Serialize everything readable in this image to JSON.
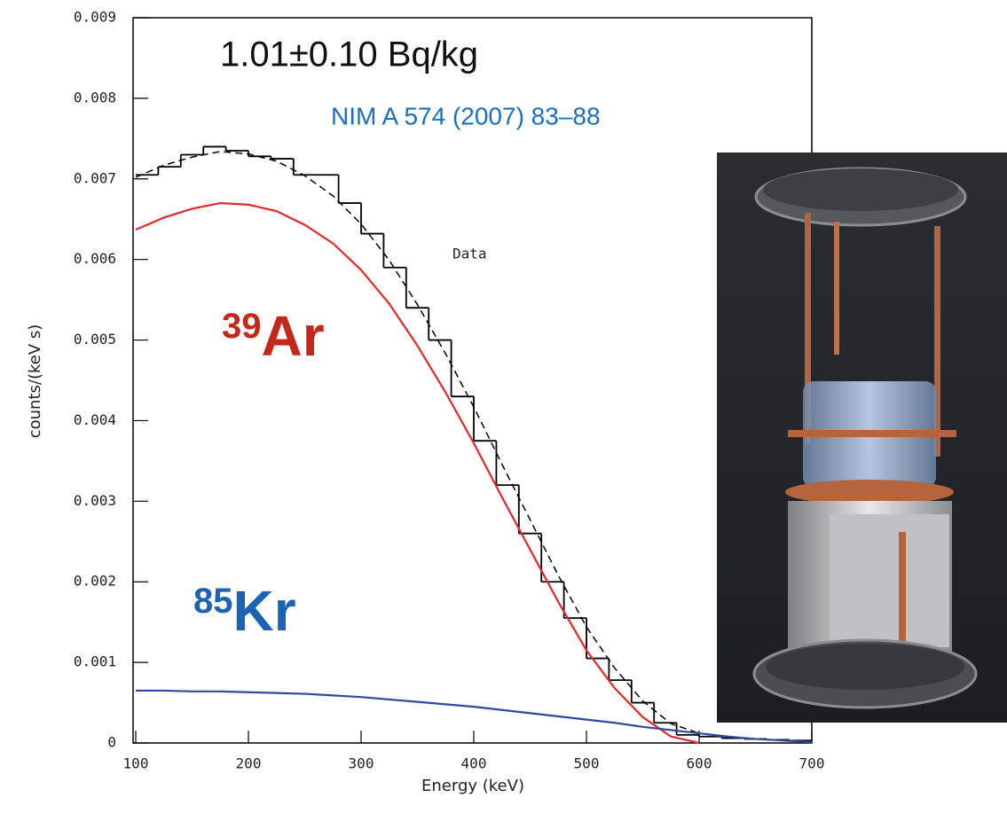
{
  "chart_data": {
    "type": "line",
    "y_label": "counts/(keV s)",
    "x_label": "Energy (keV)",
    "annotations": {
      "activity": "1.01±0.10 Bq/kg",
      "reference": "NIM A 574 (2007) 83–88",
      "data": "Data"
    },
    "isotope_labels": [
      {
        "mass": "39",
        "element": "Ar",
        "color": "#c4281b"
      },
      {
        "mass": "85",
        "element": "Kr",
        "color": "#1a63b5"
      }
    ],
    "xlim": [
      100,
      700
    ],
    "ylim": [
      0,
      0.009
    ],
    "xticks": [
      100,
      200,
      300,
      400,
      500,
      600,
      700
    ],
    "yticks": [
      0,
      0.001,
      0.002,
      0.003,
      0.004,
      0.005,
      0.006,
      0.007,
      0.008,
      0.009
    ],
    "histogram": {
      "color": "#000000",
      "bins": [
        100,
        120,
        140,
        160,
        180,
        200,
        220,
        240,
        260,
        280,
        300,
        320,
        340,
        360,
        380,
        400,
        420,
        440,
        460,
        480,
        500,
        520,
        540,
        560,
        580,
        600,
        620,
        640,
        660,
        680,
        700
      ],
      "counts": [
        0.00705,
        0.00715,
        0.0073,
        0.0074,
        0.00735,
        0.00728,
        0.00725,
        0.00705,
        0.00705,
        0.0067,
        0.00632,
        0.0059,
        0.0054,
        0.005,
        0.0043,
        0.00375,
        0.0032,
        0.0026,
        0.002,
        0.00155,
        0.00105,
        0.00078,
        0.0005,
        0.00025,
        0.0001,
        8e-05,
        6e-05,
        5e-05,
        4e-05,
        3e-05
      ]
    },
    "x": [
      100,
      125,
      150,
      175,
      200,
      225,
      250,
      275,
      300,
      325,
      350,
      375,
      400,
      425,
      450,
      475,
      500,
      525,
      550,
      575,
      600,
      625,
      650,
      675,
      700
    ],
    "series": [
      {
        "color": "#000000",
        "dashed": true,
        "values": [
          0.00702,
          0.00717,
          0.00727,
          0.00734,
          0.00731,
          0.00722,
          0.00704,
          0.00679,
          0.00644,
          0.00599,
          0.00544,
          0.00483,
          0.00417,
          0.00346,
          0.00277,
          0.00208,
          0.00144,
          0.00093,
          0.00052,
          0.00024,
          0.00012,
          8e-05,
          5e-05,
          3e-05,
          1e-05
        ]
      },
      {
        "color": "#e8262a",
        "dashed": false,
        "values": [
          0.00637,
          0.00652,
          0.00663,
          0.0067,
          0.00668,
          0.0066,
          0.00643,
          0.0062,
          0.00587,
          0.00545,
          0.00493,
          0.00435,
          0.00372,
          0.00305,
          0.0024,
          0.00175,
          0.00115,
          0.00068,
          0.00032,
          8e-05,
          0,
          null,
          null,
          null,
          null
        ]
      },
      {
        "color": "#2f4a9c",
        "dashed": false,
        "values": [
          0.00065,
          0.00065,
          0.00064,
          0.00064,
          0.00063,
          0.00062,
          0.00061,
          0.00059,
          0.00057,
          0.00054,
          0.00051,
          0.00048,
          0.00045,
          0.00041,
          0.00037,
          0.00033,
          0.00029,
          0.00025,
          0.0002,
          0.00016,
          0.00012,
          8e-05,
          5e-05,
          3e-05,
          1e-05
        ]
      }
    ]
  }
}
